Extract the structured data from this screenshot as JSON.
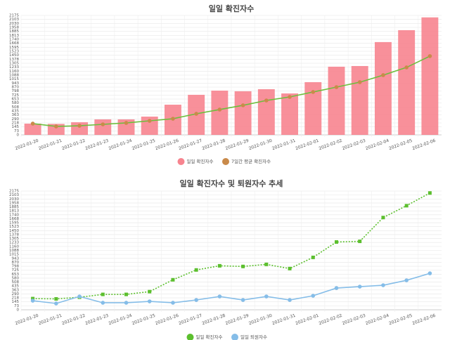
{
  "chart_data": [
    {
      "type": "bar",
      "title": "일일 확진자수",
      "categories": [
        "2022-01-20",
        "2022-01-21",
        "2022-01-22",
        "2022-01-23",
        "2022-01-24",
        "2022-01-25",
        "2022-01-26",
        "2022-01-27",
        "2022-01-28",
        "2022-01-29",
        "2022-01-30",
        "2022-01-31",
        "2022-02-01",
        "2022-02-02",
        "2022-02-03",
        "2022-02-04",
        "2022-02-05",
        "2022-02-06"
      ],
      "series": [
        {
          "name": "일일 확진자수",
          "type": "bar",
          "color": "#f7848f",
          "values": [
            205,
            200,
            230,
            282,
            282,
            333,
            550,
            730,
            806,
            794,
            832,
            755,
            960,
            1242,
            1254,
            1690,
            1907,
            2140
          ]
        },
        {
          "name": "7일간 평균 확진자수",
          "type": "line",
          "color": "#6cbf3c",
          "point_color": "#c98a4a",
          "marker": "circle",
          "dash": false,
          "values": [
            205,
            154,
            166,
            192,
            218,
            256,
            294,
            384,
            461,
            538,
            627,
            691,
            781,
            870,
            960,
            1088,
            1229,
            1434
          ]
        }
      ],
      "ylim": [
        0,
        2175
      ],
      "yticks": [
        0,
        {
          "value": 72.5,
          "label": "73"
        },
        145,
        {
          "value": 217.5,
          "label": "218"
        },
        290,
        {
          "value": 362.5,
          "label": "363"
        },
        435,
        {
          "value": 507.5,
          "label": "508"
        },
        580,
        {
          "value": 652.5,
          "label": "653"
        },
        725,
        {
          "value": 797.5,
          "label": "798"
        },
        870,
        {
          "value": 942.5,
          "label": "943"
        },
        1015,
        {
          "value": 1087.5,
          "label": "1088"
        },
        1160,
        {
          "value": 1232.5,
          "label": "1233"
        },
        1305,
        {
          "value": 1377.5,
          "label": "1378"
        },
        1450,
        {
          "value": 1522.5,
          "label": "1523"
        },
        1595,
        {
          "value": 1667.5,
          "label": "1668"
        },
        1740,
        {
          "value": 1812.5,
          "label": "1813"
        },
        1885,
        {
          "value": 1957.5,
          "label": "1958"
        },
        2030,
        {
          "value": 2102.5,
          "label": "2103"
        },
        2175
      ],
      "grid": true
    },
    {
      "type": "line",
      "title": "일일 확진자수 및 퇴원자수 추세",
      "categories": [
        "2022-01-20",
        "2022-01-21",
        "2022-01-22",
        "2022-01-23",
        "2022-01-24",
        "2022-01-25",
        "2022-01-26",
        "2022-01-27",
        "2022-01-28",
        "2022-01-29",
        "2022-01-30",
        "2022-01-31",
        "2022-02-01",
        "2022-02-02",
        "2022-02-03",
        "2022-02-04",
        "2022-02-05",
        "2022-02-06"
      ],
      "series": [
        {
          "name": "일일 확진자수",
          "type": "line",
          "color": "#5cbf2e",
          "point_color": "#5cbf2e",
          "marker": "square",
          "dash": true,
          "values": [
            205,
            200,
            230,
            282,
            282,
            333,
            550,
            730,
            806,
            794,
            832,
            755,
            960,
            1242,
            1254,
            1690,
            1907,
            2140
          ]
        },
        {
          "name": "일일 퇴원자수",
          "type": "line",
          "color": "#85bde8",
          "point_color": "#85bde8",
          "marker": "circle",
          "dash": false,
          "values": [
            167,
            116,
            244,
            129,
            129,
            154,
            129,
            180,
            244,
            180,
            244,
            180,
            257,
            398,
            424,
            450,
            540,
            668
          ]
        }
      ],
      "ylim": [
        0,
        2175
      ],
      "yticks": [
        0,
        {
          "value": 72.5,
          "label": "73"
        },
        145,
        {
          "value": 217.5,
          "label": "218"
        },
        290,
        {
          "value": 362.5,
          "label": "363"
        },
        435,
        {
          "value": 507.5,
          "label": "508"
        },
        580,
        {
          "value": 652.5,
          "label": "653"
        },
        725,
        {
          "value": 797.5,
          "label": "798"
        },
        870,
        {
          "value": 942.5,
          "label": "943"
        },
        1015,
        {
          "value": 1087.5,
          "label": "1088"
        },
        1160,
        {
          "value": 1232.5,
          "label": "1233"
        },
        1305,
        {
          "value": 1377.5,
          "label": "1378"
        },
        1450,
        {
          "value": 1522.5,
          "label": "1523"
        },
        1595,
        {
          "value": 1667.5,
          "label": "1668"
        },
        1740,
        {
          "value": 1812.5,
          "label": "1813"
        },
        1885,
        {
          "value": 1957.5,
          "label": "1958"
        },
        2030,
        {
          "value": 2102.5,
          "label": "2103"
        },
        2175
      ],
      "grid": true
    }
  ]
}
